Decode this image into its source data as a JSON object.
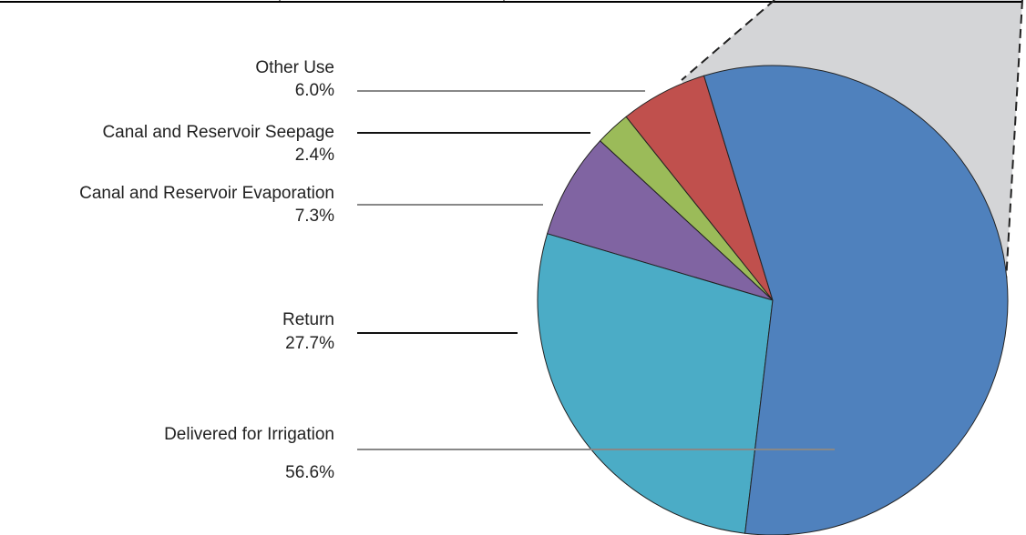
{
  "chart_data": {
    "type": "pie",
    "categories": [
      "Other Use",
      "Canal and Reservoir Seepage",
      "Canal and Reservoir Evaporation",
      "Return",
      "Delivered for Irrigation"
    ],
    "values": [
      6.0,
      2.4,
      7.3,
      27.7,
      56.6
    ],
    "value_labels": [
      "6.0%",
      "2.4%",
      "7.3%",
      "27.7%",
      "56.6%"
    ],
    "colors": [
      "#c0504d",
      "#9bbb59",
      "#8064a2",
      "#4bacc6",
      "#4f81bd"
    ]
  }
}
